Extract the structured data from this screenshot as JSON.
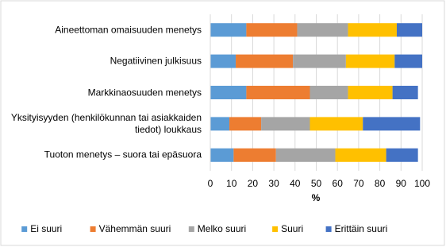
{
  "chart_data": {
    "type": "stacked-bar-horizontal",
    "categories": [
      "Aineettoman omaisuuden menetys",
      "Negatiivinen julkisuus",
      "Markkinaosuuden menetys",
      "Yksityisyyden (henkilökunnan tai asiakkaiden tiedot) loukkaus",
      "Tuoton menetys – suora tai epäsuora"
    ],
    "series": [
      {
        "name": "Ei suuri",
        "color": "#5b9bd5",
        "values": [
          17,
          12,
          17,
          9,
          11
        ]
      },
      {
        "name": "Vähemmän suuri",
        "color": "#ed7d31",
        "values": [
          24,
          27,
          30,
          15,
          20
        ]
      },
      {
        "name": "Melko suuri",
        "color": "#a5a5a5",
        "values": [
          24,
          25,
          18,
          23,
          28
        ]
      },
      {
        "name": "Suuri",
        "color": "#ffc000",
        "values": [
          23,
          23,
          21,
          25,
          24
        ]
      },
      {
        "name": "Erittäin suuri",
        "color": "#4472c4",
        "values": [
          12,
          13,
          12,
          27,
          15
        ]
      }
    ],
    "xlabel": "%",
    "xlim": [
      0,
      100
    ],
    "xticks": [
      0,
      10,
      20,
      30,
      40,
      50,
      60,
      70,
      80,
      90,
      100
    ],
    "grid": true,
    "legend": "bottom"
  }
}
